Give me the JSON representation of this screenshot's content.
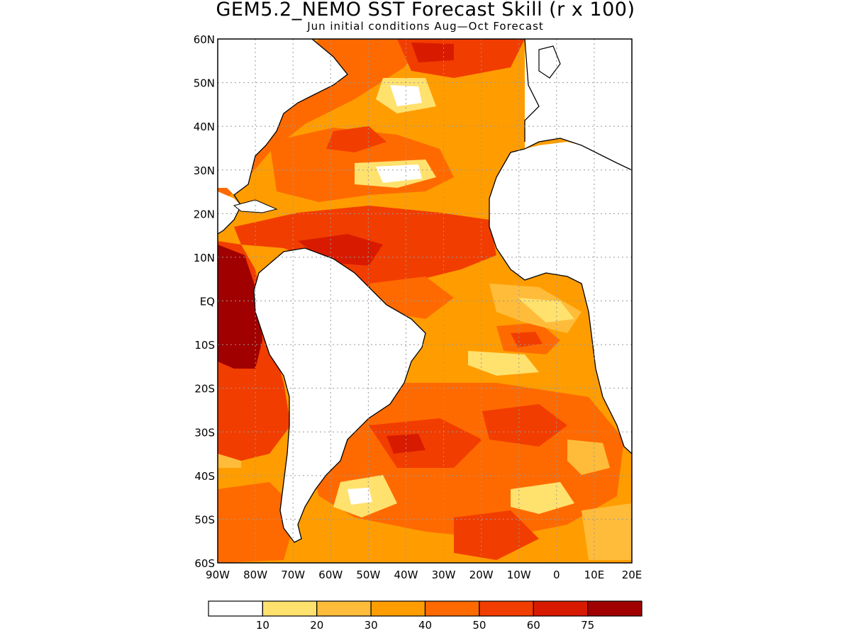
{
  "title": "GEM5.2_NEMO SST Forecast Skill (r x 100)",
  "subtitle": "Jun initial conditions  Aug—Oct Forecast",
  "map": {
    "lon_range": [
      -90,
      20
    ],
    "lat_range": [
      -60,
      60
    ],
    "lat_labels": [
      "60N",
      "50N",
      "40N",
      "30N",
      "20N",
      "10N",
      "EQ",
      "10S",
      "20S",
      "30S",
      "40S",
      "50S",
      "60S"
    ],
    "lon_labels": [
      "90W",
      "80W",
      "70W",
      "60W",
      "50W",
      "40W",
      "30W",
      "20W",
      "10W",
      "0",
      "10E",
      "20E"
    ],
    "grid": "dotted"
  },
  "legend": {
    "ticks": [
      "10",
      "20",
      "30",
      "40",
      "50",
      "60",
      "75"
    ],
    "colors": [
      "#ffffff",
      "#ffe16e",
      "#ffbc3a",
      "#ff9d00",
      "#ff6a00",
      "#f23d00",
      "#d81b00",
      "#a00000"
    ]
  }
}
